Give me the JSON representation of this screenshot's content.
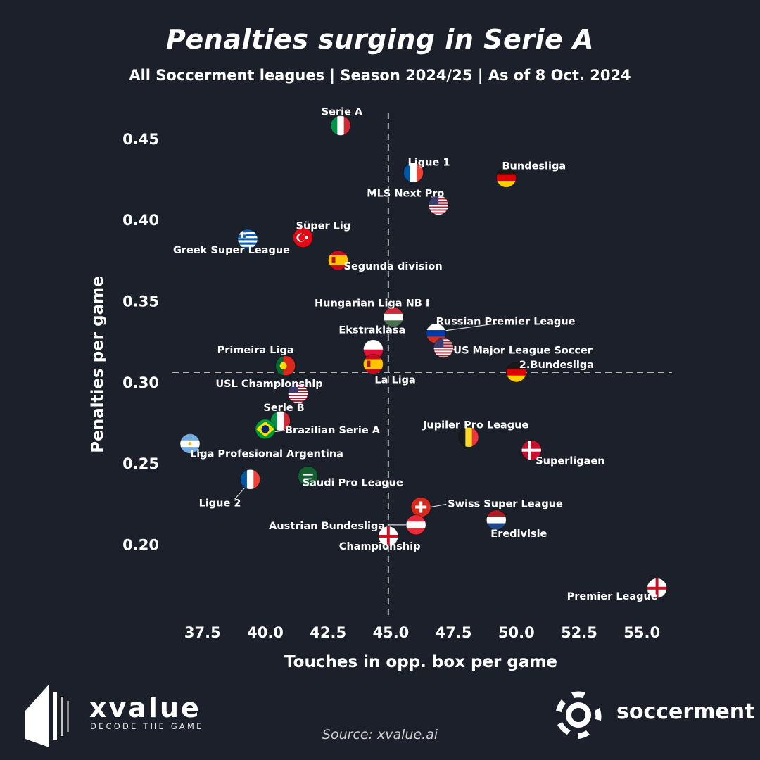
{
  "title": "Penalties surging in Serie A",
  "subtitle": "All Soccerment leagues | Season 2024/25 | As of 8 Oct. 2024",
  "source": "Source: xvalue.ai",
  "branding": {
    "left_name": "xvalue",
    "left_tagline": "DECODE THE GAME",
    "right_name": "soccerment"
  },
  "colors": {
    "background": "#1c202b",
    "text": "#ffffff",
    "reference_lines": "#b4b4b4"
  },
  "chart_data": {
    "type": "scatter",
    "title": "Penalties surging in Serie A",
    "subtitle": "All Soccerment leagues | Season 2024/25 | As of 8 Oct. 2024",
    "xlabel": "Touches in opp. box per game",
    "ylabel": "Penalties per game",
    "xlim": [
      36.3,
      56.2
    ],
    "ylim": [
      0.156,
      0.466
    ],
    "xticks": [
      37.5,
      40.0,
      42.5,
      45.0,
      47.5,
      50.0,
      52.5,
      55.0
    ],
    "xtick_labels": [
      "37.5",
      "40.0",
      "42.5",
      "45.0",
      "47.5",
      "50.0",
      "52.5",
      "55.0"
    ],
    "yticks": [
      0.2,
      0.25,
      0.3,
      0.35,
      0.4,
      0.45
    ],
    "ytick_labels": [
      "0.20",
      "0.25",
      "0.30",
      "0.35",
      "0.40",
      "0.45"
    ],
    "grid": false,
    "reference_lines": {
      "x": 44.9,
      "y": 0.306
    },
    "markers": "country flags",
    "points": [
      {
        "name": "Serie A",
        "x": 43.0,
        "y": 0.458,
        "flag": "italy"
      },
      {
        "name": "Ligue 1",
        "x": 45.9,
        "y": 0.429,
        "flag": "france"
      },
      {
        "name": "Bundesliga",
        "x": 49.6,
        "y": 0.426,
        "flag": "germany"
      },
      {
        "name": "MLS Next Pro",
        "x": 46.9,
        "y": 0.409,
        "flag": "usa"
      },
      {
        "name": "Süper Lig",
        "x": 41.5,
        "y": 0.389,
        "flag": "turkey"
      },
      {
        "name": "Greek Super League",
        "x": 39.3,
        "y": 0.388,
        "flag": "greece"
      },
      {
        "name": "Segunda division",
        "x": 42.9,
        "y": 0.375,
        "flag": "spain"
      },
      {
        "name": "Hungarian Liga NB I",
        "x": 45.1,
        "y": 0.34,
        "flag": "hungary"
      },
      {
        "name": "Russian Premier League",
        "x": 46.8,
        "y": 0.33,
        "flag": "russia"
      },
      {
        "name": "US Major League Soccer",
        "x": 47.1,
        "y": 0.321,
        "flag": "usa"
      },
      {
        "name": "Ekstraklasa",
        "x": 44.3,
        "y": 0.32,
        "flag": "poland"
      },
      {
        "name": "La Liga",
        "x": 44.3,
        "y": 0.311,
        "flag": "spain"
      },
      {
        "name": "Primeira Liga",
        "x": 40.8,
        "y": 0.31,
        "flag": "portugal"
      },
      {
        "name": "2.Bundesliga",
        "x": 50.0,
        "y": 0.306,
        "flag": "germany"
      },
      {
        "name": "USL Championship",
        "x": 41.3,
        "y": 0.293,
        "flag": "usa"
      },
      {
        "name": "Serie B",
        "x": 40.6,
        "y": 0.276,
        "flag": "italy"
      },
      {
        "name": "Brazilian Serie A",
        "x": 40.0,
        "y": 0.271,
        "flag": "brazil"
      },
      {
        "name": "Jupiler Pro League",
        "x": 48.1,
        "y": 0.266,
        "flag": "belgium"
      },
      {
        "name": "Liga Profesional Argentina",
        "x": 37.0,
        "y": 0.262,
        "flag": "argentina"
      },
      {
        "name": "Superligaen",
        "x": 50.6,
        "y": 0.258,
        "flag": "denmark"
      },
      {
        "name": "Saudi Pro League",
        "x": 41.7,
        "y": 0.242,
        "flag": "saudi"
      },
      {
        "name": "Ligue 2",
        "x": 39.4,
        "y": 0.24,
        "flag": "france"
      },
      {
        "name": "Swiss Super League",
        "x": 46.2,
        "y": 0.223,
        "flag": "switzerland"
      },
      {
        "name": "Eredivisie",
        "x": 49.2,
        "y": 0.215,
        "flag": "netherlands"
      },
      {
        "name": "Austrian Bundesliga",
        "x": 46.0,
        "y": 0.212,
        "flag": "austria"
      },
      {
        "name": "Championship",
        "x": 44.9,
        "y": 0.205,
        "flag": "england"
      },
      {
        "name": "Premier League",
        "x": 55.6,
        "y": 0.173,
        "flag": "england"
      }
    ]
  }
}
